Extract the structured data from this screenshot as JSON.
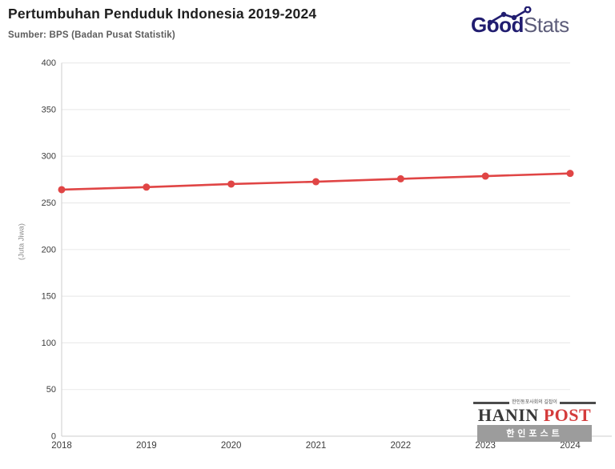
{
  "header": {
    "title": "Pertumbuhan Penduduk Indonesia 2019-2024",
    "source": "Sumber: BPS (Badan Pusat Statistik)",
    "logo": {
      "part1": "Good",
      "part2": "Stats",
      "color_dark": "#211d70",
      "color_light": "#5d5d7a"
    }
  },
  "chart_data": {
    "type": "line",
    "categories": [
      "2018",
      "2019",
      "2020",
      "2021",
      "2022",
      "2023",
      "2024"
    ],
    "series": [
      {
        "name": "Penduduk Indonesia",
        "values": [
          264.2,
          266.9,
          270.2,
          272.7,
          275.8,
          278.7,
          281.6
        ]
      }
    ],
    "title": "Pertumbuhan Penduduk Indonesia 2019-2024",
    "xlabel": "",
    "ylabel": "(Juta Jiwa)",
    "ylim": [
      0,
      400
    ],
    "ytick_step": 50,
    "grid": true,
    "legend": "none",
    "line_color": "#e04545",
    "marker": "circle",
    "marker_radius": 4.5,
    "grid_color": "#ebebeb",
    "axis_color": "#d6d6d6",
    "tick_label_color": "#3c3c3c"
  },
  "watermark": {
    "tagline": "한인동포사회의 길잡이",
    "name_dark": "HANIN",
    "name_red": "POST",
    "banner": "한인포스트"
  }
}
